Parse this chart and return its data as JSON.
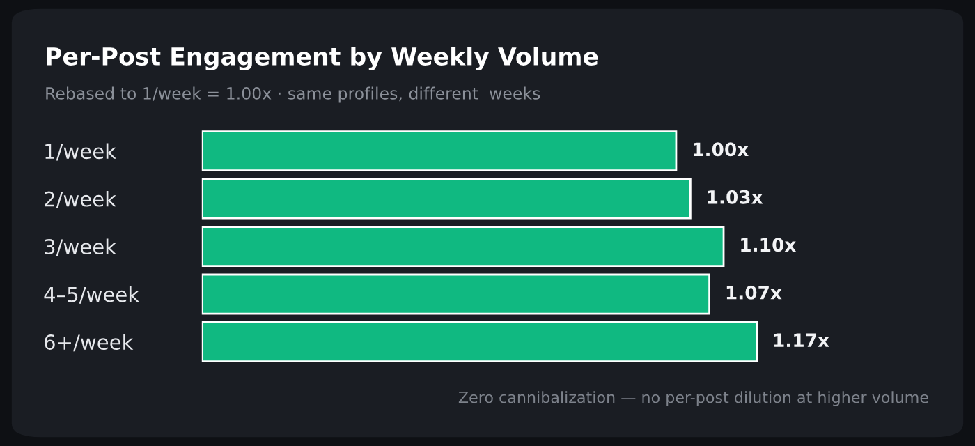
{
  "chart_data": {
    "type": "bar",
    "orientation": "horizontal",
    "title": "Per-Post Engagement by Weekly Volume",
    "subtitle": "Rebased to 1/week = 1.00x · same profiles, different  weeks",
    "categories": [
      "1/week",
      "2/week",
      "3/week",
      "4–5/week",
      "6+/week"
    ],
    "values": [
      1.0,
      1.03,
      1.1,
      1.07,
      1.17
    ],
    "value_labels": [
      "1.00x",
      "1.03x",
      "1.10x",
      "1.07x",
      "1.17x"
    ],
    "color": "#10b981",
    "grid": false,
    "legend": false,
    "tick_labels": "y",
    "annotations": [
      "Zero cannibalization — no per-post dilution at higher volume"
    ]
  }
}
